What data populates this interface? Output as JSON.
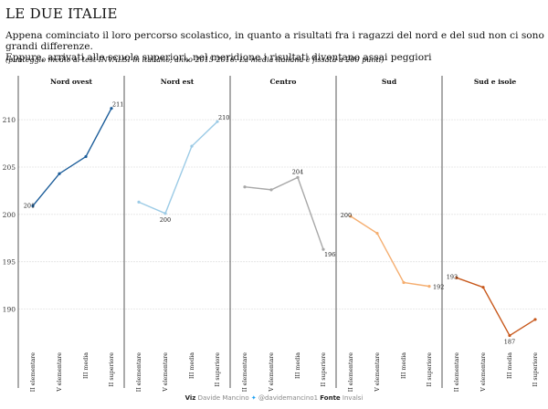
{
  "header": {
    "title": "LE DUE ITALIE",
    "subtitle_line1": "Appena cominciato il loro percorso scolastico, in quanto a risultati fra i ragazzi del nord e del sud non ci sono grandi differenze.",
    "subtitle_line2": "Eppure, arrivati alle scuole superiori, nel meridione i risultati diventano assai peggiori",
    "note": "(punteggio medio ai test INVALSI in italiano, anno 2015-2016. La media italiana è fissata a 200 punti)"
  },
  "footer": {
    "viz_label": "Viz",
    "author": "Davide Mancino",
    "handle": "@davidemancino1",
    "source_label": "Fonte",
    "source": "Invalsi"
  },
  "chart_data": {
    "type": "line",
    "categories": [
      "II elementare",
      "V elementare",
      "III media",
      "II superiore"
    ],
    "y_ticks": [
      190,
      195,
      200,
      205,
      210
    ],
    "ylim": [
      186,
      213
    ],
    "grid": true,
    "panels": [
      {
        "name": "Nord ovest",
        "values": [
          200.9,
          204.3,
          206.1,
          211.2
        ],
        "color": "#1a5c99",
        "labels": [
          {
            "index": 0,
            "text": "201"
          },
          {
            "index": 3,
            "text": "211"
          }
        ]
      },
      {
        "name": "Nord est",
        "values": [
          201.3,
          200.1,
          207.2,
          209.8
        ],
        "color": "#9ccbe6",
        "labels": [
          {
            "index": 1,
            "text": "200"
          },
          {
            "index": 3,
            "text": "210"
          }
        ]
      },
      {
        "name": "Centro",
        "values": [
          202.9,
          202.6,
          203.9,
          196.3
        ],
        "color": "#a8a8a8",
        "labels": [
          {
            "index": 2,
            "text": "204"
          },
          {
            "index": 3,
            "text": "196"
          }
        ]
      },
      {
        "name": "Sud",
        "values": [
          199.8,
          198.0,
          192.8,
          192.4
        ],
        "color": "#f5ae70",
        "labels": [
          {
            "index": 0,
            "text": "200"
          },
          {
            "index": 3,
            "text": "192"
          }
        ]
      },
      {
        "name": "Sud e isole",
        "values": [
          193.3,
          192.3,
          187.2,
          188.9
        ],
        "color": "#c7571a",
        "labels": [
          {
            "index": 0,
            "text": "193"
          },
          {
            "index": 2,
            "text": "187"
          }
        ]
      }
    ]
  }
}
